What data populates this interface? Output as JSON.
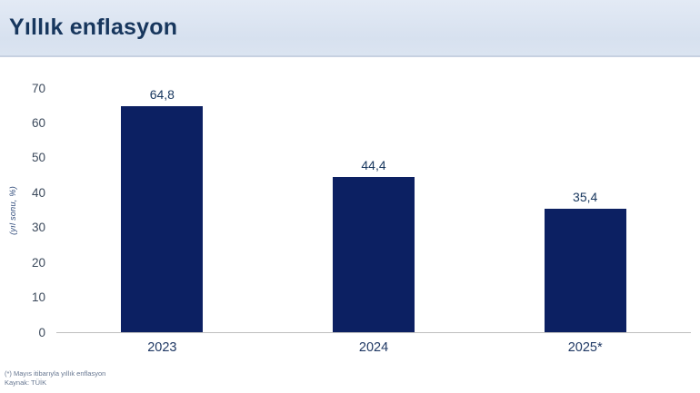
{
  "header": {
    "title": "Yıllık enflasyon",
    "background_color": "#dbe4f1",
    "text_color": "#17365d"
  },
  "chart_data": {
    "type": "bar",
    "title": "Yıllık enflasyon",
    "categories": [
      "2023",
      "2024",
      "2025*"
    ],
    "values": [
      64.8,
      44.4,
      35.4
    ],
    "value_labels": [
      "64,8",
      "44,4",
      "35,4"
    ],
    "xlabel": "",
    "ylabel": "(yıl sonu, %)",
    "ylim": [
      0,
      70
    ],
    "yticks": [
      0,
      10,
      20,
      30,
      40,
      50,
      60,
      70
    ],
    "grid": false,
    "legend": false,
    "bar_color": "#0c2062",
    "axis_line_color": "#bfbfbf"
  },
  "footnotes": {
    "line1": "(*) Mayıs itibarıyla yıllık enflasyon",
    "line2": "Kaynak: TÜİK"
  }
}
